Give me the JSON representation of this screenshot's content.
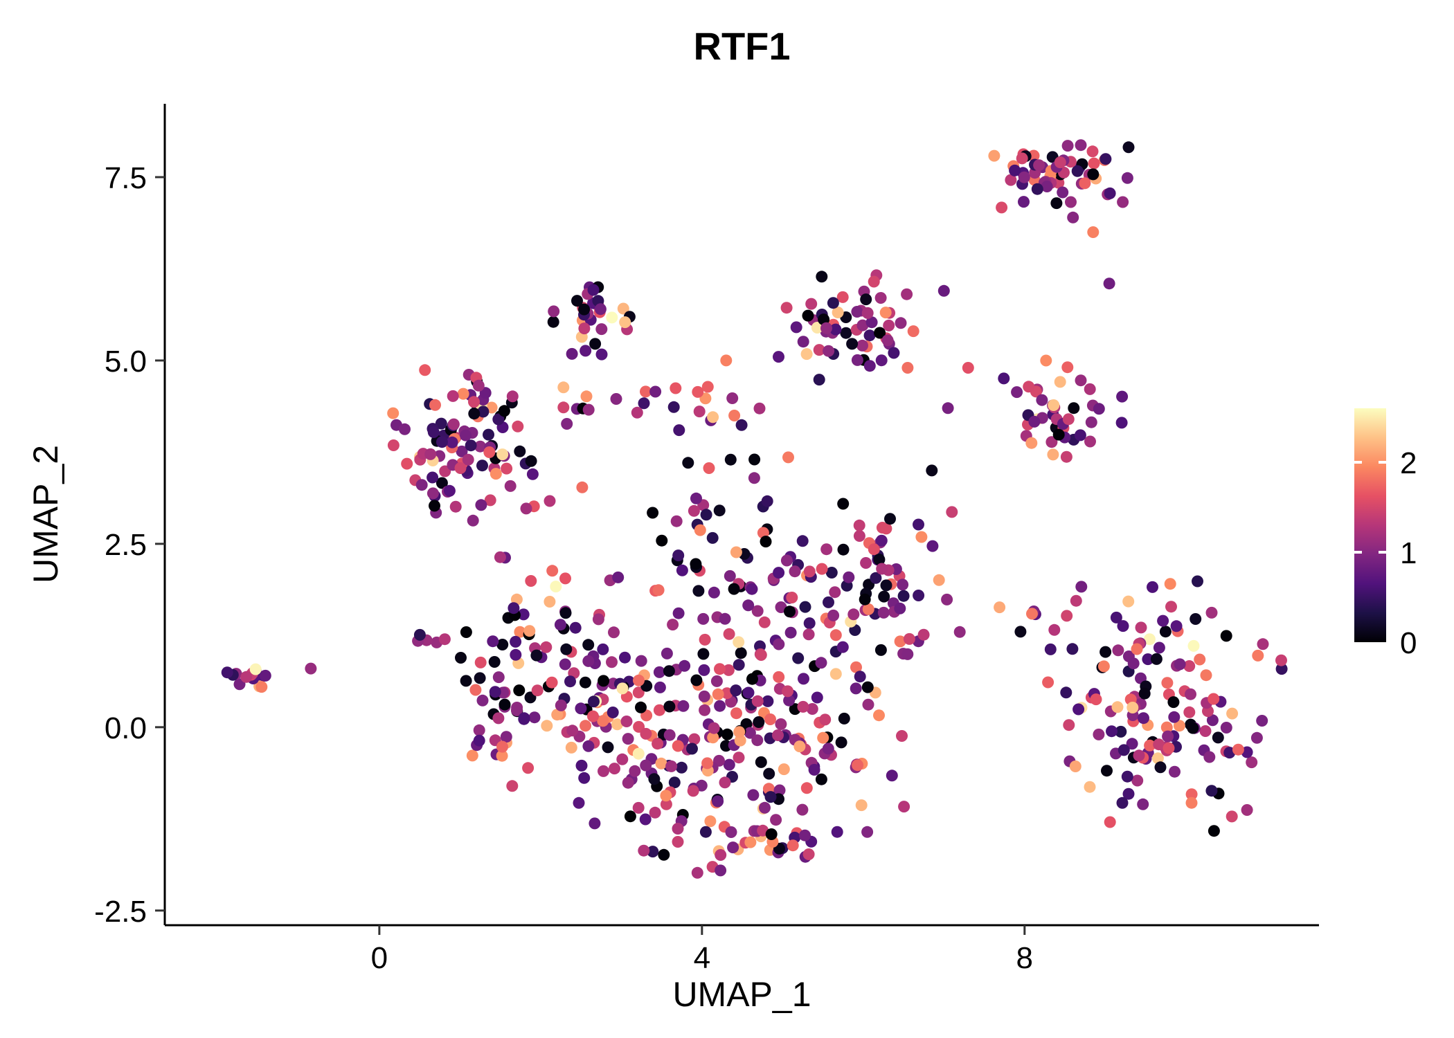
{
  "chart_data": {
    "type": "scatter",
    "title": "RTF1",
    "xlabel": "UMAP_1",
    "ylabel": "UMAP_2",
    "xlim": [
      -2.66,
      11.65
    ],
    "ylim": [
      -2.7,
      8.5
    ],
    "x_ticks": [
      0,
      4,
      8
    ],
    "x_tick_labels": [
      "0",
      "4",
      "8"
    ],
    "y_ticks": [
      -2.5,
      0,
      2.5,
      5,
      7.5
    ],
    "y_tick_labels": [
      "-2.5",
      "0.0",
      "2.5",
      "5.0",
      "7.5"
    ],
    "grid": false,
    "background": "#ffffff",
    "axis_color": "#000000",
    "legend": {
      "position": "right",
      "vmin": 0,
      "vmax": 2.6,
      "ticks": [
        0,
        1,
        2
      ],
      "tick_labels": [
        "0",
        "1",
        "2"
      ],
      "colormap": "magma"
    },
    "colormap_stops": [
      [
        0,
        "#000004"
      ],
      [
        0.125,
        "#1d1147"
      ],
      [
        0.25,
        "#51127c"
      ],
      [
        0.375,
        "#822681"
      ],
      [
        0.5,
        "#b63679"
      ],
      [
        0.625,
        "#e65164"
      ],
      [
        0.75,
        "#fb8861"
      ],
      [
        0.875,
        "#fec287"
      ],
      [
        1,
        "#fcfdbf"
      ]
    ],
    "point_radius_px": 8.5,
    "seed": 7,
    "value_bins": [
      [
        0.13,
        0,
        0.15
      ],
      [
        0.22,
        0.35,
        0.8
      ],
      [
        0.25,
        0.8,
        1.2
      ],
      [
        0.2,
        1.2,
        1.6
      ],
      [
        0.12,
        1.6,
        2.0
      ],
      [
        0.06,
        2.0,
        2.3
      ],
      [
        0.02,
        2.3,
        2.6
      ]
    ],
    "cluster_fields": [
      "n",
      "cx",
      "cy",
      "sx",
      "sy"
    ],
    "clusters": [
      [
        55,
        8.5,
        7.5,
        0.42,
        0.22
      ],
      [
        30,
        2.75,
        5.65,
        0.28,
        0.3
      ],
      [
        55,
        5.85,
        5.45,
        0.38,
        0.33
      ],
      [
        42,
        8.45,
        4.35,
        0.38,
        0.33
      ],
      [
        95,
        1.05,
        3.85,
        0.4,
        0.5
      ],
      [
        25,
        3.3,
        4.35,
        0.75,
        0.18
      ],
      [
        15,
        3.6,
        3.3,
        0.9,
        0.3
      ],
      [
        15,
        -1.62,
        0.68,
        0.16,
        0.1
      ],
      [
        80,
        1.9,
        0.6,
        0.45,
        0.8
      ],
      [
        120,
        3.3,
        0.2,
        0.7,
        0.8
      ],
      [
        130,
        5.0,
        0.1,
        0.75,
        0.85
      ],
      [
        55,
        6.3,
        1.9,
        0.45,
        0.55
      ],
      [
        55,
        4.5,
        2.1,
        0.95,
        0.45
      ],
      [
        40,
        4.3,
        -1.45,
        0.85,
        0.3
      ],
      [
        5,
        0.7,
        1.25,
        0.15,
        0.1
      ],
      [
        135,
        9.8,
        0.3,
        0.7,
        0.8
      ],
      [
        6,
        8.0,
        1.35,
        0.25,
        0.2
      ]
    ],
    "single_fields": [
      "x",
      "y",
      "value"
    ],
    "singles": [
      [
        -0.85,
        0.8,
        1.1
      ],
      [
        4.3,
        5.0,
        1.9
      ],
      [
        4.95,
        5.05,
        0.7
      ],
      [
        7.0,
        5.95,
        0.8
      ],
      [
        7.05,
        4.35,
        0.9
      ],
      [
        6.55,
        4.9,
        1.8
      ],
      [
        8.85,
        6.75,
        1.9
      ],
      [
        8.6,
        6.95,
        1.0
      ],
      [
        9.05,
        6.05,
        0.85
      ],
      [
        9.55,
        1.2,
        2.55
      ],
      [
        4.65,
        3.65,
        0.05
      ],
      [
        6.85,
        3.5,
        0.1
      ],
      [
        7.3,
        4.9,
        1.6
      ]
    ]
  }
}
